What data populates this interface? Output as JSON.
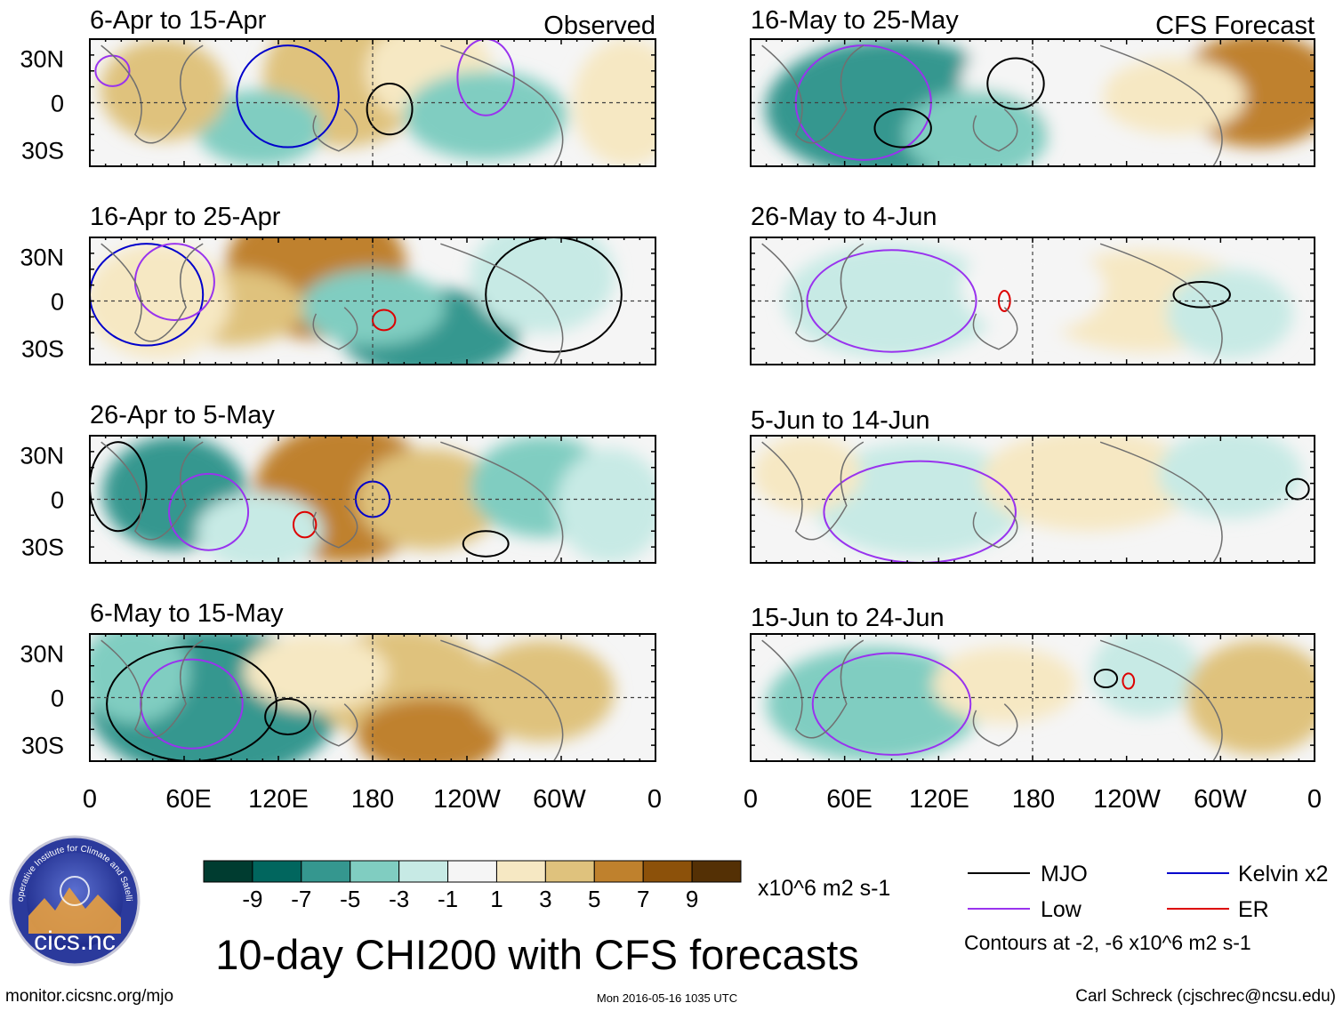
{
  "chart_data": {
    "type": "heatmap",
    "title": "10-day CHI200 with CFS forecasts",
    "variable": "CHI200",
    "units": "x10^6 m2 s-1",
    "colorbar": {
      "labels": [
        "-9",
        "-7",
        "-5",
        "-3",
        "-1",
        "1",
        "3",
        "5",
        "7",
        "9"
      ],
      "colors": [
        "#003c30",
        "#01665e",
        "#35978f",
        "#80cdc1",
        "#c7eae5",
        "#f5f5f5",
        "#f6e8c3",
        "#dfc27d",
        "#bf812d",
        "#8c510a",
        "#543005"
      ]
    },
    "x_ticks": [
      "0",
      "60E",
      "120E",
      "180",
      "120W",
      "60W",
      "0"
    ],
    "y_ticks": [
      "30N",
      "0",
      "30S"
    ],
    "legend": [
      {
        "name": "MJO",
        "color": "#000000"
      },
      {
        "name": "Kelvin x2",
        "color": "#0000cc"
      },
      {
        "name": "Low",
        "color": "#9933ee"
      },
      {
        "name": "ER",
        "color": "#dd0000"
      }
    ],
    "contour_note": "Contours at -2, -6 x10^6 m2 s-1",
    "panels": [
      {
        "label": "6-Apr to 15-Apr",
        "tag": "Observed",
        "col": 0,
        "row": 0
      },
      {
        "label": "16-Apr to 25-Apr",
        "col": 0,
        "row": 1
      },
      {
        "label": "26-Apr to 5-May",
        "col": 0,
        "row": 2
      },
      {
        "label": "6-May to 15-May",
        "col": 0,
        "row": 3
      },
      {
        "label": "16-May to 25-May",
        "tag": "CFS Forecast",
        "col": 1,
        "row": 0
      },
      {
        "label": "26-May to 4-Jun",
        "col": 1,
        "row": 1
      },
      {
        "label": "5-Jun to 14-Jun",
        "col": 1,
        "row": 2
      },
      {
        "label": "15-Jun to 24-Jun",
        "col": 1,
        "row": 3
      }
    ]
  },
  "footer": {
    "url": "monitor.cicsnc.org/mjo",
    "timestamp": "Mon 2016-05-16 1035 UTC",
    "credit": "Carl Schreck (cjschrec@ncsu.edu)"
  },
  "logo": {
    "ring_text": "Cooperative Institute for Climate and Satellites",
    "brand": "cics.nc"
  }
}
